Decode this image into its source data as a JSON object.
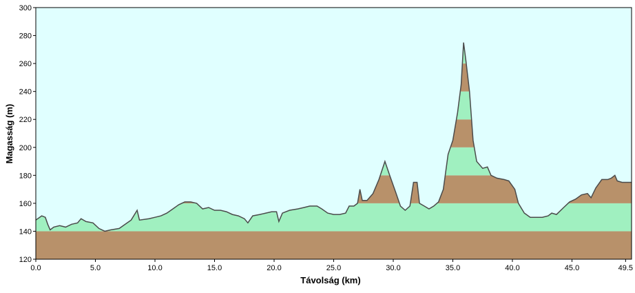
{
  "chart_data": {
    "type": "area",
    "xlabel": "Távolság  (km)",
    "ylabel": "Magasság (m)",
    "xlim": [
      0,
      50
    ],
    "ylim": [
      120,
      300
    ],
    "xticks": [
      {
        "value": 0,
        "label": "0.0"
      },
      {
        "value": 5,
        "label": "5.0"
      },
      {
        "value": 10,
        "label": "10.0"
      },
      {
        "value": 15,
        "label": "15.0"
      },
      {
        "value": 20,
        "label": "20.0"
      },
      {
        "value": 25,
        "label": "25.0"
      },
      {
        "value": 30,
        "label": "30.0"
      },
      {
        "value": 35,
        "label": "35.0"
      },
      {
        "value": 40,
        "label": "40.0"
      },
      {
        "value": 45,
        "label": "45.0"
      },
      {
        "value": 49.5,
        "label": "49.5"
      }
    ],
    "yticks": [
      120,
      140,
      160,
      180,
      200,
      220,
      240,
      260,
      280,
      300
    ],
    "background": "#e0ffff",
    "line_color": "#4a4a4a",
    "band_colors": [
      "#b8916a",
      "#a0f0c0"
    ],
    "x": [
      0,
      0.5,
      0.8,
      1.0,
      1.2,
      1.5,
      2,
      2.5,
      3,
      3.5,
      3.8,
      4.2,
      4.8,
      5.3,
      5.8,
      6.3,
      7,
      7.5,
      8,
      8.5,
      8.7,
      9.5,
      10,
      10.5,
      11,
      11.5,
      12,
      12.5,
      13,
      13.5,
      14,
      14.5,
      15,
      15.5,
      16,
      16.5,
      17,
      17.5,
      17.8,
      18.2,
      18.8,
      19.3,
      19.8,
      20.2,
      20.4,
      20.7,
      21.3,
      22,
      22.5,
      23,
      23.6,
      24,
      24.5,
      25,
      25.5,
      26,
      26.3,
      26.7,
      27.0,
      27.2,
      27.4,
      27.8,
      28.3,
      28.8,
      29.3,
      29.7,
      30.2,
      30.6,
      31.0,
      31.4,
      31.7,
      32.0,
      32.2,
      32.6,
      33.0,
      33.4,
      33.8,
      34.2,
      34.6,
      35.0,
      35.4,
      35.7,
      35.9,
      36.1,
      36.4,
      36.7,
      37.0,
      37.5,
      37.9,
      38.2,
      38.7,
      39.3,
      39.7,
      40.2,
      40.5,
      41,
      41.5,
      42,
      42.5,
      43,
      43.3,
      43.7,
      44.3,
      44.8,
      45.3,
      45.8,
      46.3,
      46.6,
      47.0,
      47.5,
      48.0,
      48.3,
      48.6,
      48.8,
      49.2,
      49.5,
      50
    ],
    "values": [
      148,
      151,
      150,
      145,
      141,
      143,
      144,
      143,
      145,
      146,
      149,
      147,
      146,
      142,
      140,
      141,
      142,
      145,
      148,
      155,
      148,
      149,
      150,
      151,
      153,
      156,
      159,
      161,
      161,
      160,
      156,
      157,
      155,
      155,
      154,
      152,
      151,
      149,
      146,
      151,
      152,
      153,
      154,
      154,
      147,
      153,
      155,
      156,
      157,
      158,
      158,
      156,
      153,
      152,
      152,
      153,
      158,
      158,
      160,
      170,
      162,
      162,
      167,
      177,
      190,
      180,
      168,
      158,
      155,
      158,
      175,
      175,
      160,
      158,
      156,
      158,
      161,
      170,
      195,
      205,
      225,
      245,
      275,
      262,
      240,
      205,
      190,
      185,
      186,
      180,
      178,
      177,
      176,
      170,
      160,
      153,
      150,
      150,
      150,
      151,
      153,
      152,
      157,
      161,
      163,
      166,
      167,
      164,
      171,
      177,
      177,
      178,
      180,
      176,
      175,
      175,
      175
    ]
  }
}
